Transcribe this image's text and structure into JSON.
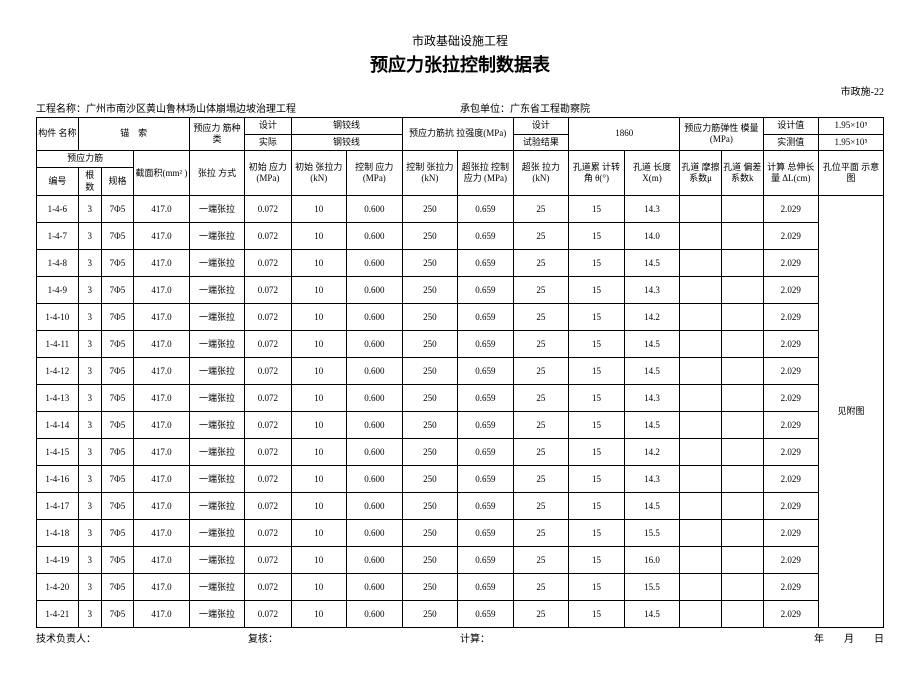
{
  "header": {
    "line1": "市政基础设施工程",
    "line2": "预应力张拉控制数据表",
    "code": "市政施-22"
  },
  "meta": {
    "project_label": "工程名称：",
    "project_value": "广州市南沙区黄山鲁林场山体崩塌边坡治理工程",
    "contractor_label": "承包单位：",
    "contractor_value": "广东省工程勘察院"
  },
  "head": {
    "component": "构件\n名称",
    "anchor": "锚　索",
    "type": "预应力\n筋种类",
    "design": "设计",
    "actual": "实际",
    "strand1": "钢铰线",
    "strand2": "钢铰线",
    "tensile": "预应力筋抗\n拉强度(MPa)",
    "design2": "设计",
    "test": "试验结果",
    "v1860": "1860",
    "modulus": "预应力筋弹性\n模量(MPa)",
    "designv": "设计值",
    "measured": "实测值",
    "sci": "1.95×10⁵",
    "prestress": "预应力筋",
    "area": "截面积(mm²\n)",
    "method": "张拉\n方式",
    "c1": "初始\n应力\n(MPa)",
    "c2": "初始\n张拉力\n(kN)",
    "c3": "控制\n应力\n(MPa)",
    "c4": "控制\n张拉力\n(kN)",
    "c5": "超张拉\n控制应力\n(MPa)",
    "c6": "超张\n拉力\n(kN)",
    "c7": "孔道累\n计转角\nθ(°)",
    "c8": "孔道\n长度\nX(m)",
    "c9": "孔道\n摩擦\n系数μ",
    "c10": "孔道\n偏差\n系数k",
    "c11": "计算\n总伸长量\nΔL(cm)",
    "c12": "孔位平面\n示意图",
    "no": "编号",
    "qty": "根\n数",
    "spec": "规格",
    "see": "见附图"
  },
  "body": {
    "rows": [
      {
        "no": "1-4-6",
        "x": "14.3"
      },
      {
        "no": "1-4-7",
        "x": "14.0"
      },
      {
        "no": "1-4-8",
        "x": "14.5"
      },
      {
        "no": "1-4-9",
        "x": "14.3"
      },
      {
        "no": "1-4-10",
        "x": "14.2"
      },
      {
        "no": "1-4-11",
        "x": "14.5"
      },
      {
        "no": "1-4-12",
        "x": "14.5"
      },
      {
        "no": "1-4-13",
        "x": "14.3"
      },
      {
        "no": "1-4-14",
        "x": "14.5"
      },
      {
        "no": "1-4-15",
        "x": "14.2"
      },
      {
        "no": "1-4-16",
        "x": "14.3"
      },
      {
        "no": "1-4-17",
        "x": "14.5"
      },
      {
        "no": "1-4-18",
        "x": "15.5"
      },
      {
        "no": "1-4-19",
        "x": "16.0"
      },
      {
        "no": "1-4-20",
        "x": "15.5"
      },
      {
        "no": "1-4-21",
        "x": "14.5"
      }
    ],
    "common": {
      "qty": "3",
      "spec": "7Φ5",
      "area": "417.0",
      "method": "一端张拉",
      "c1": "0.072",
      "c2": "10",
      "c3": "0.600",
      "c4": "250",
      "c5": "0.659",
      "c6": "25",
      "c7": "15",
      "c9": "",
      "c10": "",
      "c11": "2.029"
    }
  },
  "footer": {
    "f1": "技术负责人：",
    "f2": "复核：",
    "f3": "计算：",
    "f4": "年　　月　　日"
  }
}
